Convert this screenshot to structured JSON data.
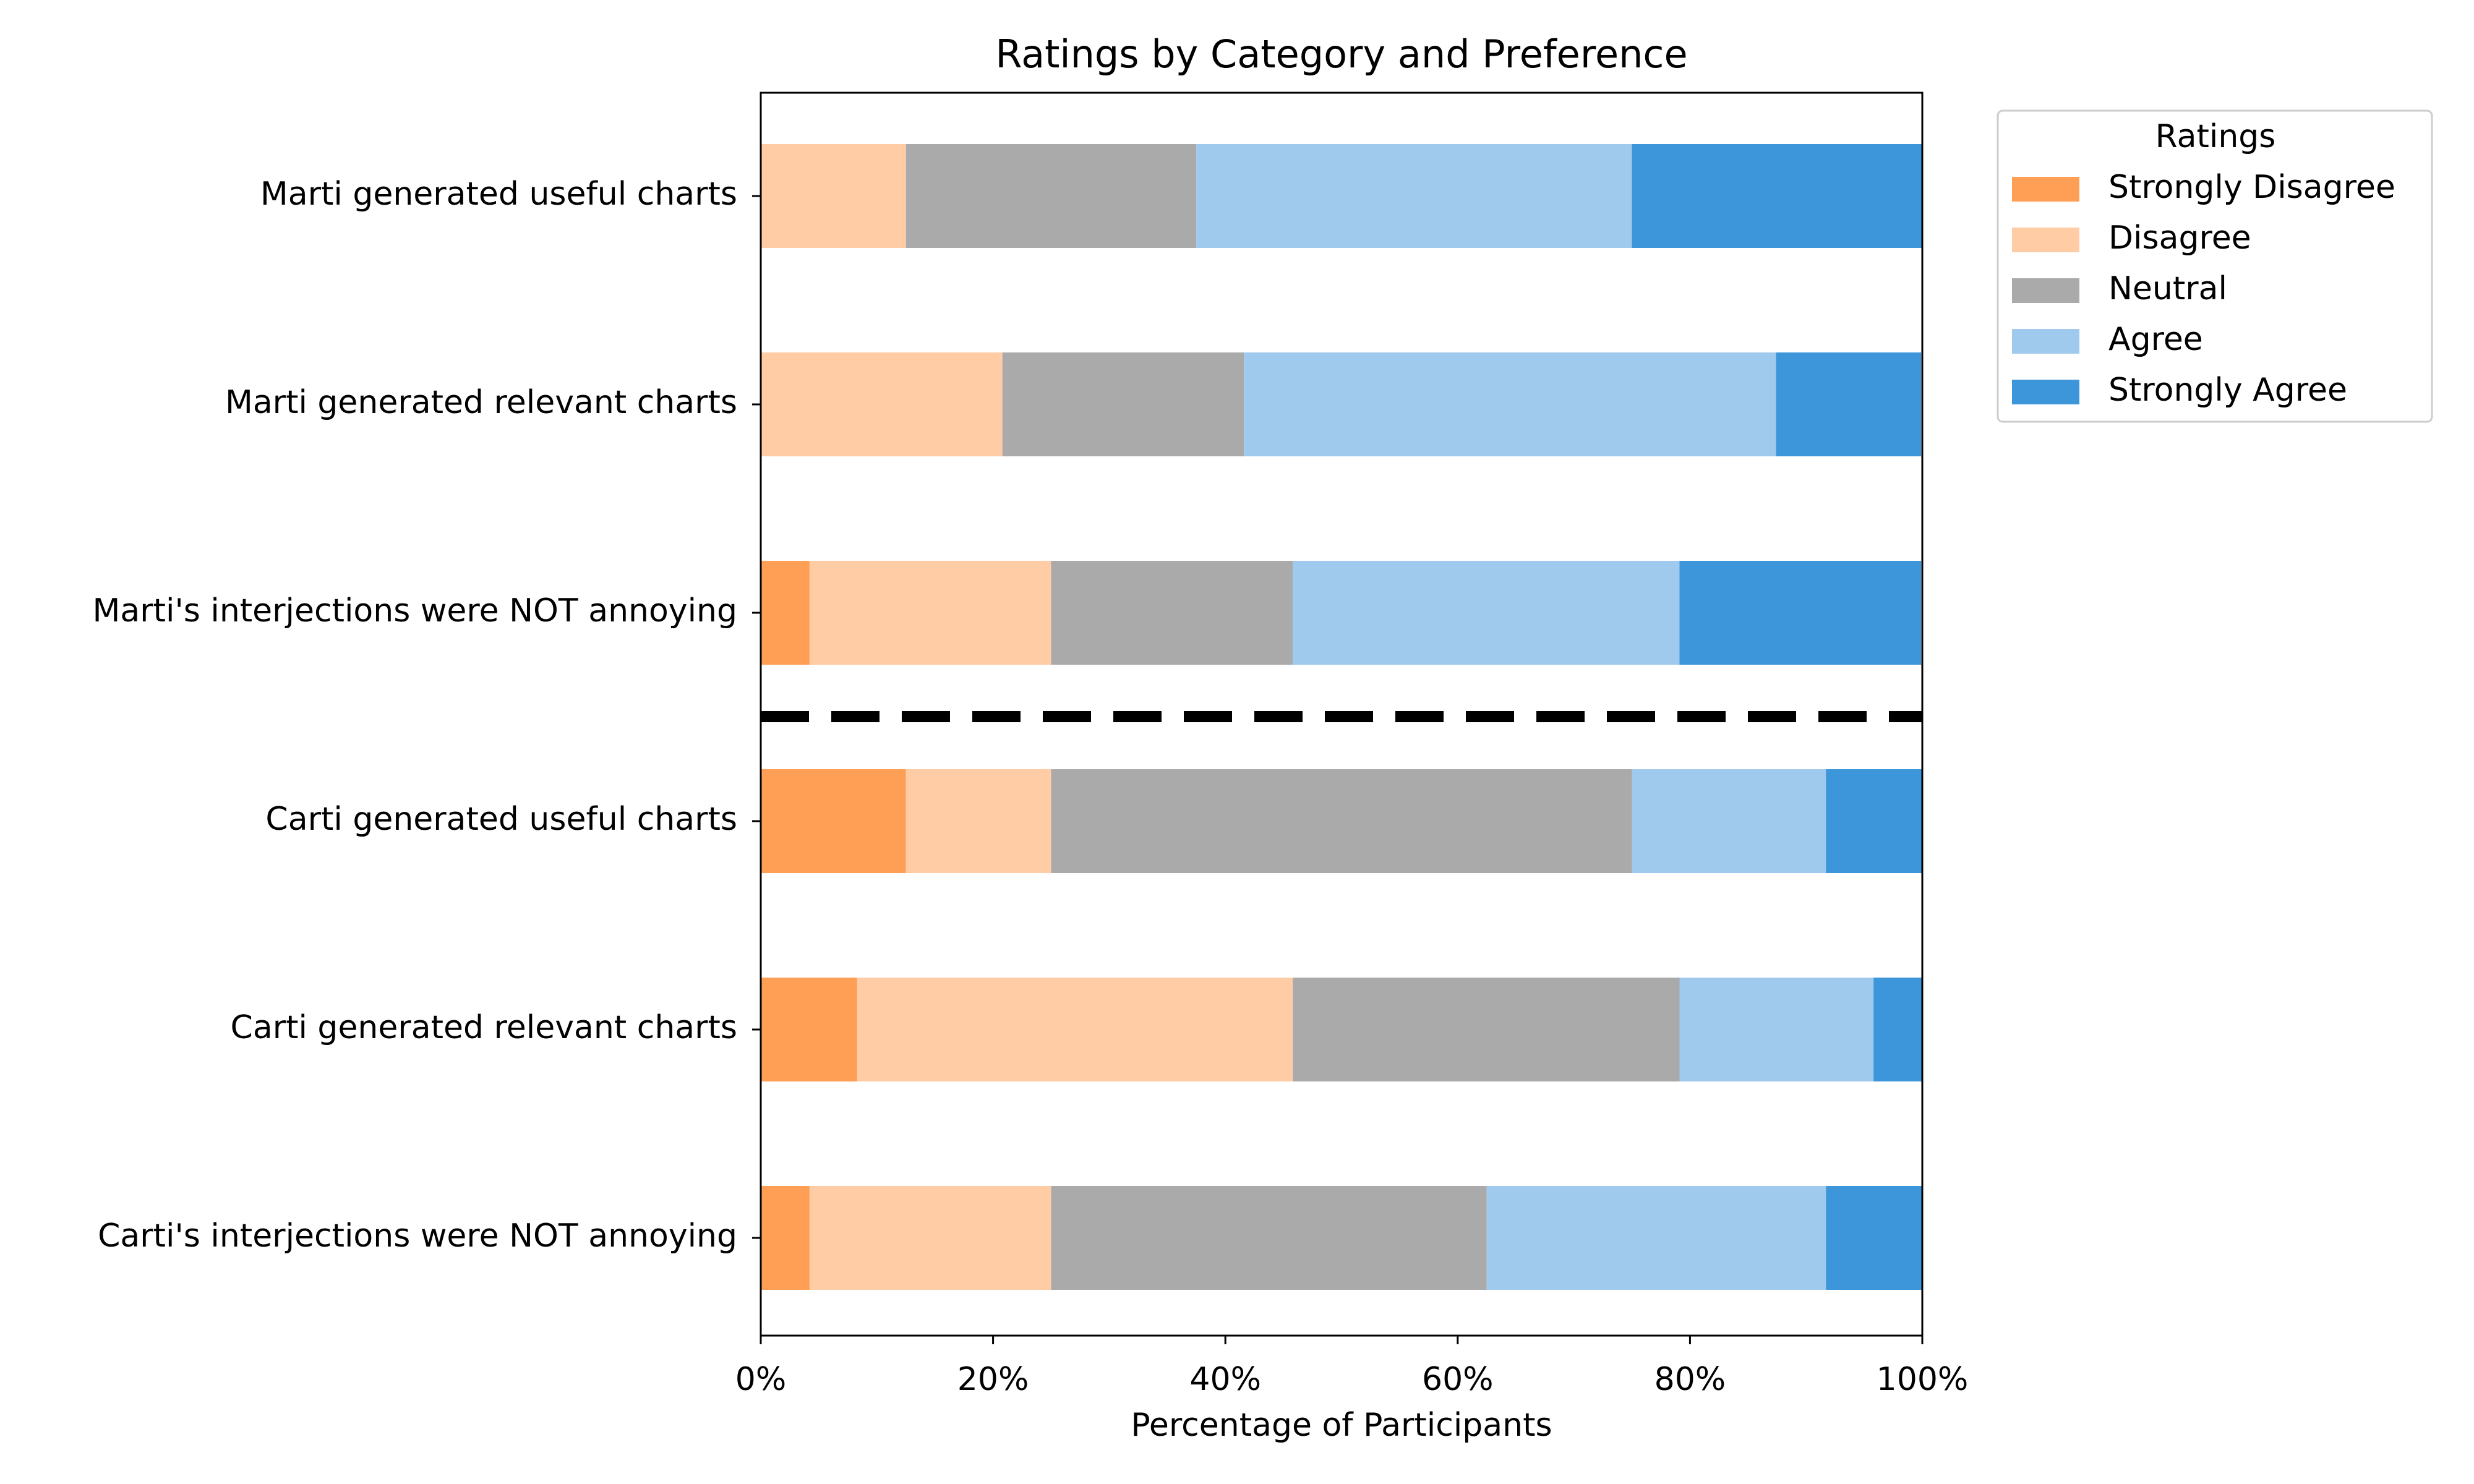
{
  "chart_data": {
    "type": "bar",
    "orientation": "horizontal",
    "stacked": true,
    "title": "Ratings by Category and Preference",
    "x_label": "Percentage of Participants",
    "legend_title": "Ratings",
    "legend_position": "outside upper right",
    "categories": [
      "Marti generated useful charts",
      "Marti generated relevant charts",
      "Marti's interjections were NOT annoying",
      "Carti generated useful charts",
      "Carti generated relevant charts",
      "Carti's interjections were NOT annoying"
    ],
    "series": [
      {
        "name": "Strongly Disagree",
        "color": "#ff9f55",
        "values": [
          0,
          0,
          4.2,
          12.5,
          8.3,
          4.2
        ]
      },
      {
        "name": "Disagree",
        "color": "#ffcca6",
        "values": [
          12.5,
          20.8,
          20.8,
          12.5,
          37.5,
          20.8
        ]
      },
      {
        "name": "Neutral",
        "color": "#aaaaaa",
        "values": [
          25,
          20.8,
          20.8,
          50,
          33.3,
          37.5
        ]
      },
      {
        "name": "Agree",
        "color": "#a0caed",
        "values": [
          37.5,
          45.8,
          33.3,
          16.7,
          16.7,
          29.2
        ]
      },
      {
        "name": "Strongly Agree",
        "color": "#3d96da",
        "values": [
          25,
          12.5,
          20.8,
          8.3,
          4.2,
          8.3
        ]
      }
    ],
    "xlim": [
      0,
      100
    ],
    "xticks": [
      {
        "value": 0,
        "label": "0%"
      },
      {
        "value": 20,
        "label": "20%"
      },
      {
        "value": 40,
        "label": "40%"
      },
      {
        "value": 60,
        "label": "60%"
      },
      {
        "value": 80,
        "label": "80%"
      },
      {
        "value": 100,
        "label": "100%"
      }
    ]
  }
}
